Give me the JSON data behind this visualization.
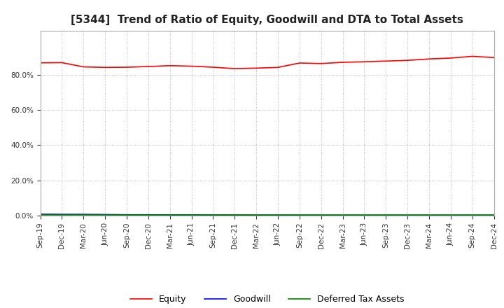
{
  "title": "[5344]  Trend of Ratio of Equity, Goodwill and DTA to Total Assets",
  "title_fontsize": 11,
  "ylim": [
    0,
    105
  ],
  "yticks": [
    0,
    20,
    40,
    60,
    80
  ],
  "background_color": "#ffffff",
  "grid_color": "#aaaaaa",
  "x_labels": [
    "Sep-19",
    "Dec-19",
    "Mar-20",
    "Jun-20",
    "Sep-20",
    "Dec-20",
    "Mar-21",
    "Jun-21",
    "Sep-21",
    "Dec-21",
    "Mar-22",
    "Jun-22",
    "Sep-22",
    "Dec-22",
    "Mar-23",
    "Jun-23",
    "Sep-23",
    "Dec-23",
    "Mar-24",
    "Jun-24",
    "Sep-24",
    "Dec-24"
  ],
  "equity": [
    86.8,
    86.9,
    84.5,
    84.2,
    84.3,
    84.7,
    85.2,
    84.9,
    84.3,
    83.5,
    83.8,
    84.2,
    86.7,
    86.4,
    87.1,
    87.4,
    87.8,
    88.2,
    89.0,
    89.5,
    90.5,
    89.8
  ],
  "goodwill": [
    0.8,
    0.7,
    0.7,
    0.6,
    0.5,
    0.5,
    0.4,
    0.4,
    0.3,
    0.3,
    0.2,
    0.2,
    0.1,
    0.1,
    0.0,
    0.0,
    0.0,
    0.0,
    0.0,
    0.0,
    0.0,
    0.0
  ],
  "dta": [
    0.5,
    0.5,
    0.5,
    0.5,
    0.5,
    0.5,
    0.5,
    0.5,
    0.5,
    0.5,
    0.5,
    0.5,
    0.5,
    0.5,
    0.5,
    0.5,
    0.5,
    0.5,
    0.5,
    0.5,
    0.5,
    0.5
  ],
  "equity_color": "#ff0000",
  "goodwill_color": "#0000ff",
  "dta_color": "#008000",
  "line_width": 1.2,
  "legend_labels": [
    "Equity",
    "Goodwill",
    "Deferred Tax Assets"
  ]
}
